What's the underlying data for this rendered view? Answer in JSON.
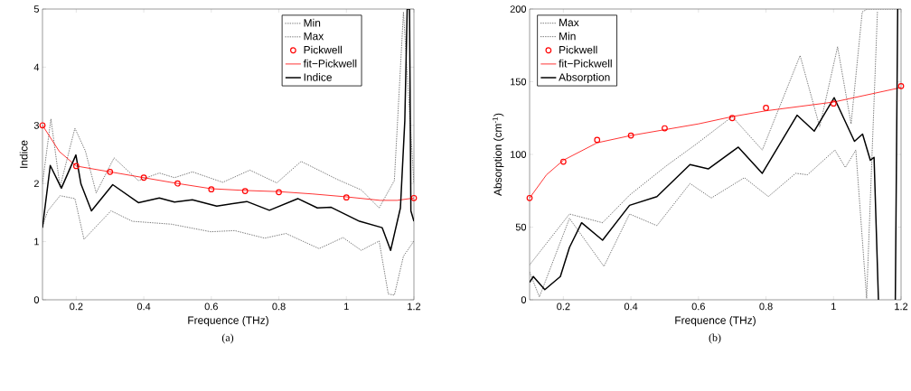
{
  "chart_data": [
    {
      "type": "line",
      "xlabel": "Frequence (THz)",
      "ylabel": "Indice",
      "xlim": [
        0.1,
        1.2
      ],
      "ylim": [
        0,
        5
      ],
      "xticks": [
        0.2,
        0.4,
        0.6,
        0.8,
        1,
        1.2
      ],
      "yticks": [
        0,
        1,
        2,
        3,
        4,
        5
      ],
      "legend": "top right",
      "annotations": [
        "(a)"
      ],
      "series": [
        {
          "name": "Min",
          "color": "#555555",
          "line_style": "dotted",
          "x": [
            0.1,
            0.116,
            0.152,
            0.196,
            0.223,
            0.303,
            0.366,
            0.482,
            0.598,
            0.669,
            0.758,
            0.821,
            0.919,
            0.99,
            1.044,
            1.097,
            1.124,
            1.142,
            1.169,
            1.2
          ],
          "values": [
            1.27,
            1.53,
            1.79,
            1.74,
            1.04,
            1.53,
            1.35,
            1.3,
            1.17,
            1.19,
            1.06,
            1.14,
            0.88,
            1.07,
            0.85,
            1.01,
            0.1,
            0.08,
            0.75,
            1.01
          ]
        },
        {
          "name": "Max",
          "color": "#555555",
          "line_style": "dotted",
          "x": [
            0.1,
            0.125,
            0.152,
            0.196,
            0.227,
            0.259,
            0.312,
            0.384,
            0.446,
            0.491,
            0.544,
            0.634,
            0.714,
            0.794,
            0.866,
            0.973,
            1.044,
            1.097,
            1.142,
            1.169,
            1.2
          ],
          "values": [
            2.0,
            3.11,
            1.94,
            2.95,
            2.56,
            1.84,
            2.44,
            2.05,
            2.18,
            2.1,
            2.2,
            2.02,
            2.23,
            2.01,
            2.38,
            2.07,
            1.89,
            1.58,
            2.05,
            4.95,
            2.0
          ]
        },
        {
          "name": "Pickwell",
          "type": "scatter",
          "marker": "circle",
          "color": "#ff0000",
          "x": [
            0.1,
            0.2,
            0.3,
            0.4,
            0.5,
            0.6,
            0.7,
            0.8,
            1.0,
            1.2
          ],
          "values": [
            3.0,
            2.3,
            2.2,
            2.1,
            2.0,
            1.9,
            1.87,
            1.85,
            1.76,
            1.75
          ]
        },
        {
          "name": "fit−Pickwell",
          "color": "#ff0000",
          "line_style": "solid",
          "x": [
            0.1,
            0.15,
            0.2,
            0.3,
            0.4,
            0.5,
            0.6,
            0.7,
            0.8,
            0.9,
            1.0,
            1.1,
            1.15,
            1.2
          ],
          "values": [
            3.0,
            2.55,
            2.3,
            2.2,
            2.1,
            2.0,
            1.91,
            1.88,
            1.86,
            1.82,
            1.77,
            1.71,
            1.71,
            1.75
          ]
        },
        {
          "name": "Indice",
          "color": "#000000",
          "line_style": "solid",
          "x": [
            0.1,
            0.123,
            0.156,
            0.199,
            0.214,
            0.245,
            0.308,
            0.384,
            0.446,
            0.491,
            0.544,
            0.616,
            0.705,
            0.772,
            0.856,
            0.914,
            0.955,
            1.039,
            1.106,
            1.131,
            1.16,
            1.173,
            1.18,
            1.187,
            1.191,
            1.2
          ],
          "values": [
            1.24,
            2.31,
            1.92,
            2.49,
            1.99,
            1.53,
            1.98,
            1.67,
            1.75,
            1.68,
            1.72,
            1.61,
            1.69,
            1.54,
            1.74,
            1.58,
            1.59,
            1.35,
            1.24,
            0.85,
            1.58,
            3.08,
            5.0,
            5.0,
            1.53,
            1.35
          ]
        }
      ]
    },
    {
      "type": "line",
      "xlabel": "Frequence (THz)",
      "ylabel": "Absorption (cm$^{-1}$)",
      "xlim": [
        0.1,
        1.2
      ],
      "ylim": [
        0,
        200
      ],
      "xticks": [
        0.2,
        0.4,
        0.6,
        0.8,
        1,
        1.2
      ],
      "yticks": [
        0,
        50,
        100,
        150,
        200
      ],
      "legend": "top left",
      "annotations": [
        "(b)"
      ],
      "series": [
        {
          "name": "Max",
          "color": "#555555",
          "line_style": "dotted",
          "x": [
            0.1,
            0.218,
            0.316,
            0.396,
            0.504,
            0.593,
            0.7,
            0.789,
            0.901,
            0.959,
            1.012,
            1.052,
            1.085,
            1.1,
            1.2
          ],
          "values": [
            24,
            59,
            53,
            72,
            92,
            107,
            126,
            103,
            168,
            119,
            174,
            121,
            198,
            200,
            200
          ]
        },
        {
          "name": "Min",
          "color": "#555555",
          "line_style": "dotted",
          "x": [
            0.1,
            0.129,
            0.218,
            0.32,
            0.396,
            0.477,
            0.575,
            0.638,
            0.736,
            0.807,
            0.888,
            0.923,
            1.004,
            1.035,
            1.066,
            1.098,
            1.13
          ],
          "values": [
            19,
            2,
            56,
            23,
            59,
            51,
            80,
            70,
            84,
            71,
            87,
            86,
            103,
            91,
            103,
            1,
            198
          ]
        },
        {
          "name": "Pickwell",
          "type": "scatter",
          "marker": "circle",
          "color": "#ff0000",
          "x": [
            0.1,
            0.2,
            0.3,
            0.4,
            0.5,
            0.7,
            0.8,
            1.0,
            1.2
          ],
          "values": [
            70,
            95,
            110,
            113,
            118,
            125,
            132,
            135,
            147
          ]
        },
        {
          "name": "fit−Pickwell",
          "color": "#ff0000",
          "line_style": "solid",
          "x": [
            0.1,
            0.15,
            0.2,
            0.3,
            0.4,
            0.5,
            0.6,
            0.7,
            0.8,
            0.9,
            1.0,
            1.1,
            1.2
          ],
          "values": [
            70,
            86,
            96,
            108,
            113,
            117,
            121,
            126,
            130,
            133,
            136,
            141,
            146
          ]
        },
        {
          "name": "Absorption",
          "color": "#000000",
          "line_style": "solid",
          "x": [
            0.1,
            0.111,
            0.145,
            0.191,
            0.218,
            0.254,
            0.316,
            0.396,
            0.477,
            0.575,
            0.629,
            0.718,
            0.789,
            0.892,
            0.943,
            1.002,
            1.062,
            1.086,
            1.109,
            1.12,
            1.133,
            1.16,
            1.183,
            1.19
          ],
          "values": [
            12,
            16,
            7,
            16,
            36,
            53,
            41,
            65,
            71,
            93,
            90,
            105,
            87,
            127,
            116,
            139,
            109,
            114,
            96,
            98,
            0,
            null,
            0,
            200
          ]
        }
      ]
    }
  ]
}
